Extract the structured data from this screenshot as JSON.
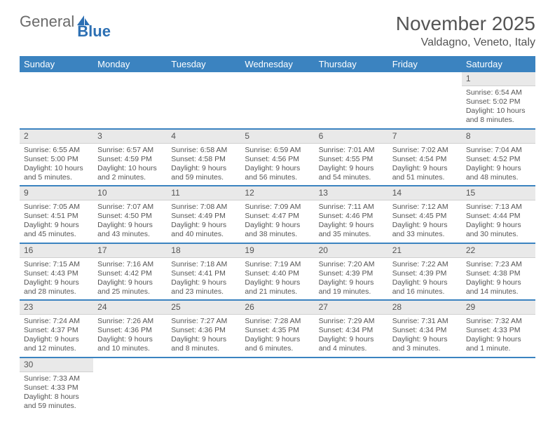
{
  "brand": {
    "first": "General",
    "second": "Blue"
  },
  "title": {
    "month": "November 2025",
    "location": "Valdagno, Veneto, Italy"
  },
  "colors": {
    "header_bg": "#3b83c0",
    "header_fg": "#ffffff",
    "daynum_bg": "#e9e9e9",
    "row_divider": "#3b83c0",
    "text": "#555555",
    "brand_gray": "#6a6a6a",
    "brand_blue": "#2c6fb3"
  },
  "weekdays": [
    "Sunday",
    "Monday",
    "Tuesday",
    "Wednesday",
    "Thursday",
    "Friday",
    "Saturday"
  ],
  "weeks": [
    [
      null,
      null,
      null,
      null,
      null,
      null,
      {
        "n": "1",
        "sunrise": "Sunrise: 6:54 AM",
        "sunset": "Sunset: 5:02 PM",
        "daylight": "Daylight: 10 hours and 8 minutes."
      }
    ],
    [
      {
        "n": "2",
        "sunrise": "Sunrise: 6:55 AM",
        "sunset": "Sunset: 5:00 PM",
        "daylight": "Daylight: 10 hours and 5 minutes."
      },
      {
        "n": "3",
        "sunrise": "Sunrise: 6:57 AM",
        "sunset": "Sunset: 4:59 PM",
        "daylight": "Daylight: 10 hours and 2 minutes."
      },
      {
        "n": "4",
        "sunrise": "Sunrise: 6:58 AM",
        "sunset": "Sunset: 4:58 PM",
        "daylight": "Daylight: 9 hours and 59 minutes."
      },
      {
        "n": "5",
        "sunrise": "Sunrise: 6:59 AM",
        "sunset": "Sunset: 4:56 PM",
        "daylight": "Daylight: 9 hours and 56 minutes."
      },
      {
        "n": "6",
        "sunrise": "Sunrise: 7:01 AM",
        "sunset": "Sunset: 4:55 PM",
        "daylight": "Daylight: 9 hours and 54 minutes."
      },
      {
        "n": "7",
        "sunrise": "Sunrise: 7:02 AM",
        "sunset": "Sunset: 4:54 PM",
        "daylight": "Daylight: 9 hours and 51 minutes."
      },
      {
        "n": "8",
        "sunrise": "Sunrise: 7:04 AM",
        "sunset": "Sunset: 4:52 PM",
        "daylight": "Daylight: 9 hours and 48 minutes."
      }
    ],
    [
      {
        "n": "9",
        "sunrise": "Sunrise: 7:05 AM",
        "sunset": "Sunset: 4:51 PM",
        "daylight": "Daylight: 9 hours and 45 minutes."
      },
      {
        "n": "10",
        "sunrise": "Sunrise: 7:07 AM",
        "sunset": "Sunset: 4:50 PM",
        "daylight": "Daylight: 9 hours and 43 minutes."
      },
      {
        "n": "11",
        "sunrise": "Sunrise: 7:08 AM",
        "sunset": "Sunset: 4:49 PM",
        "daylight": "Daylight: 9 hours and 40 minutes."
      },
      {
        "n": "12",
        "sunrise": "Sunrise: 7:09 AM",
        "sunset": "Sunset: 4:47 PM",
        "daylight": "Daylight: 9 hours and 38 minutes."
      },
      {
        "n": "13",
        "sunrise": "Sunrise: 7:11 AM",
        "sunset": "Sunset: 4:46 PM",
        "daylight": "Daylight: 9 hours and 35 minutes."
      },
      {
        "n": "14",
        "sunrise": "Sunrise: 7:12 AM",
        "sunset": "Sunset: 4:45 PM",
        "daylight": "Daylight: 9 hours and 33 minutes."
      },
      {
        "n": "15",
        "sunrise": "Sunrise: 7:13 AM",
        "sunset": "Sunset: 4:44 PM",
        "daylight": "Daylight: 9 hours and 30 minutes."
      }
    ],
    [
      {
        "n": "16",
        "sunrise": "Sunrise: 7:15 AM",
        "sunset": "Sunset: 4:43 PM",
        "daylight": "Daylight: 9 hours and 28 minutes."
      },
      {
        "n": "17",
        "sunrise": "Sunrise: 7:16 AM",
        "sunset": "Sunset: 4:42 PM",
        "daylight": "Daylight: 9 hours and 25 minutes."
      },
      {
        "n": "18",
        "sunrise": "Sunrise: 7:18 AM",
        "sunset": "Sunset: 4:41 PM",
        "daylight": "Daylight: 9 hours and 23 minutes."
      },
      {
        "n": "19",
        "sunrise": "Sunrise: 7:19 AM",
        "sunset": "Sunset: 4:40 PM",
        "daylight": "Daylight: 9 hours and 21 minutes."
      },
      {
        "n": "20",
        "sunrise": "Sunrise: 7:20 AM",
        "sunset": "Sunset: 4:39 PM",
        "daylight": "Daylight: 9 hours and 19 minutes."
      },
      {
        "n": "21",
        "sunrise": "Sunrise: 7:22 AM",
        "sunset": "Sunset: 4:39 PM",
        "daylight": "Daylight: 9 hours and 16 minutes."
      },
      {
        "n": "22",
        "sunrise": "Sunrise: 7:23 AM",
        "sunset": "Sunset: 4:38 PM",
        "daylight": "Daylight: 9 hours and 14 minutes."
      }
    ],
    [
      {
        "n": "23",
        "sunrise": "Sunrise: 7:24 AM",
        "sunset": "Sunset: 4:37 PM",
        "daylight": "Daylight: 9 hours and 12 minutes."
      },
      {
        "n": "24",
        "sunrise": "Sunrise: 7:26 AM",
        "sunset": "Sunset: 4:36 PM",
        "daylight": "Daylight: 9 hours and 10 minutes."
      },
      {
        "n": "25",
        "sunrise": "Sunrise: 7:27 AM",
        "sunset": "Sunset: 4:36 PM",
        "daylight": "Daylight: 9 hours and 8 minutes."
      },
      {
        "n": "26",
        "sunrise": "Sunrise: 7:28 AM",
        "sunset": "Sunset: 4:35 PM",
        "daylight": "Daylight: 9 hours and 6 minutes."
      },
      {
        "n": "27",
        "sunrise": "Sunrise: 7:29 AM",
        "sunset": "Sunset: 4:34 PM",
        "daylight": "Daylight: 9 hours and 4 minutes."
      },
      {
        "n": "28",
        "sunrise": "Sunrise: 7:31 AM",
        "sunset": "Sunset: 4:34 PM",
        "daylight": "Daylight: 9 hours and 3 minutes."
      },
      {
        "n": "29",
        "sunrise": "Sunrise: 7:32 AM",
        "sunset": "Sunset: 4:33 PM",
        "daylight": "Daylight: 9 hours and 1 minute."
      }
    ],
    [
      {
        "n": "30",
        "sunrise": "Sunrise: 7:33 AM",
        "sunset": "Sunset: 4:33 PM",
        "daylight": "Daylight: 8 hours and 59 minutes."
      },
      null,
      null,
      null,
      null,
      null,
      null
    ]
  ]
}
